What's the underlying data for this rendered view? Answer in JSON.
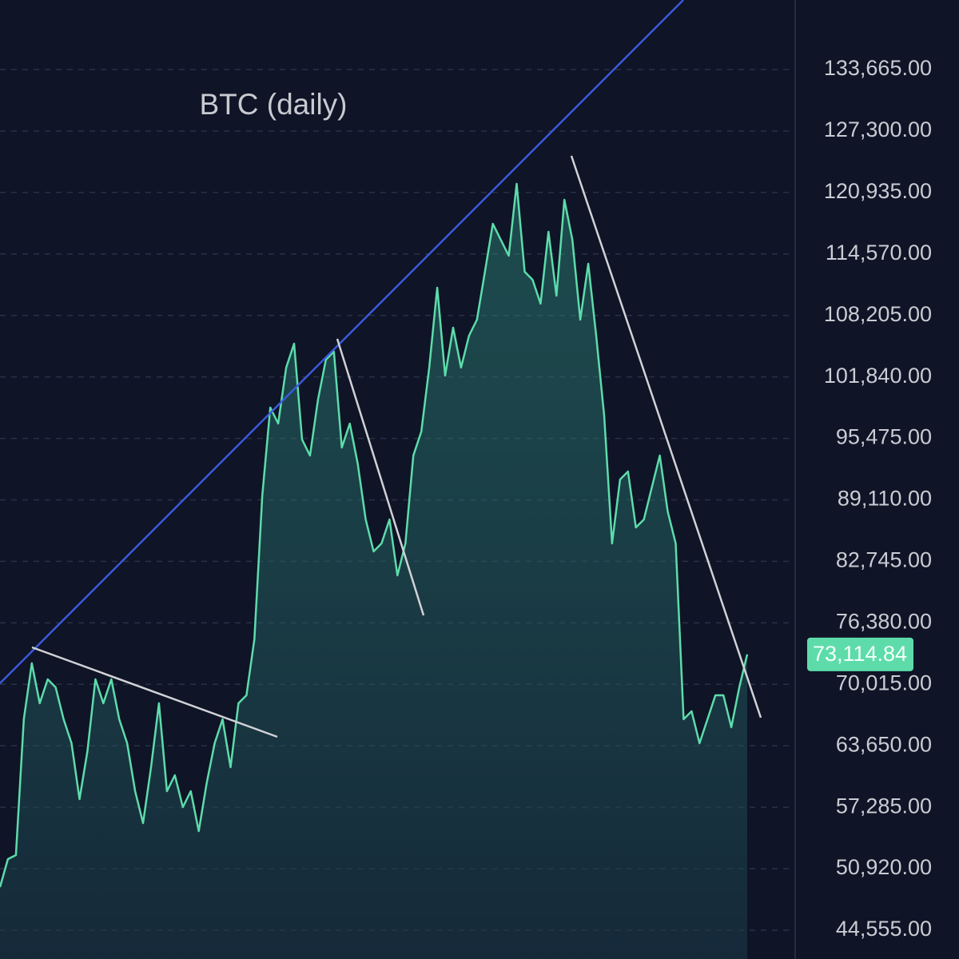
{
  "chart_data": {
    "type": "line",
    "title": "BTC (daily)",
    "series": [
      {
        "name": "BTC",
        "color": "#5ddcaa",
        "values": [
          49025,
          51920,
          52334,
          66400,
          72192,
          68055,
          70537,
          69710,
          66400,
          63918,
          58126,
          63090,
          70537,
          68055,
          70537,
          66400,
          63918,
          58953,
          55644,
          61436,
          68055,
          58953,
          60608,
          57299,
          58953,
          54816,
          59781,
          63918,
          66400,
          61436,
          68055,
          68882,
          74674,
          89567,
          98669,
          97014,
          102806,
          105288,
          95359,
          93704,
          99496,
          103633,
          104460,
          94532,
          97014,
          92877,
          87085,
          83775,
          84603,
          87085,
          81293,
          84603,
          93704,
          96186,
          102806,
          111080,
          101978,
          106943,
          102806,
          106115,
          107770,
          112734,
          117699,
          116044,
          114389,
          121836,
          112734,
          111907,
          109425,
          116871,
          110252,
          120181,
          116044,
          107770,
          113562,
          106115,
          97841,
          84603,
          91222,
          92049,
          86258,
          87085,
          90395,
          93704,
          87912,
          84603,
          66400,
          67227,
          63918,
          66400,
          68882,
          68882,
          65573,
          69710,
          73114.84
        ]
      }
    ],
    "current_price": {
      "value": 73114.84,
      "label": "73,114.84"
    },
    "ylim": [
      41575,
      140866
    ],
    "yticks": [
      {
        "value": 44555,
        "label": "44,555.00"
      },
      {
        "value": 50920,
        "label": "50,920.00"
      },
      {
        "value": 57285,
        "label": "57,285.00"
      },
      {
        "value": 63650,
        "label": "63,650.00"
      },
      {
        "value": 70015,
        "label": "70,015.00"
      },
      {
        "value": 76380,
        "label": "76,380.00"
      },
      {
        "value": 82745,
        "label": "82,745.00"
      },
      {
        "value": 89110,
        "label": "89,110.00"
      },
      {
        "value": 95475,
        "label": "95,475.00"
      },
      {
        "value": 101840,
        "label": "101,840.00"
      },
      {
        "value": 108205,
        "label": "108,205.00"
      },
      {
        "value": 114570,
        "label": "114,570.00"
      },
      {
        "value": 120935,
        "label": "120,935.00"
      },
      {
        "value": 127300,
        "label": "127,300.00"
      },
      {
        "value": 133665,
        "label": "133,665.00"
      }
    ],
    "grid": true
  }
}
